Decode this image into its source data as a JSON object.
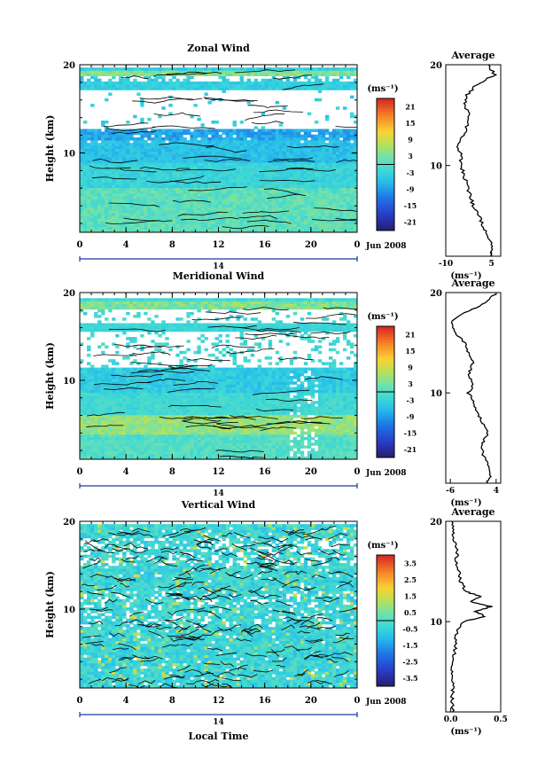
{
  "chart_data": [
    {
      "type": "heatmap",
      "title": "Zonal Wind",
      "ylabel": "Height (km)",
      "x_ticks": [
        "0",
        "4",
        "8",
        "12",
        "16",
        "20",
        "0"
      ],
      "xlim": [
        0,
        24
      ],
      "ylim": [
        1,
        20
      ],
      "y_ticks": [
        "10",
        "20"
      ],
      "date_label": "Jun 2008",
      "day_label": "14",
      "colorbar_unit": "(ms⁻¹)",
      "colorbar_ticks": [
        "21",
        "15",
        "9",
        "3",
        "-3",
        "-9",
        "-15",
        "-21"
      ],
      "colorbar_values": [
        21,
        15,
        9,
        3,
        -3,
        -9,
        -15,
        -21
      ],
      "colorbar_range": [
        -24,
        24
      ],
      "profile": {
        "title": "Average",
        "xlim": [
          -10,
          8
        ],
        "x_ticks": [
          "-10",
          "5"
        ],
        "y_ticks": [
          "10",
          "20"
        ],
        "xlabel": "(ms⁻¹)",
        "heights": [
          1,
          2,
          3,
          4,
          5,
          6,
          7,
          8,
          9,
          10,
          11,
          12,
          13,
          14,
          15,
          16,
          17,
          18,
          19,
          20
        ],
        "values": [
          5,
          5,
          4,
          2,
          1,
          -1,
          -2,
          -3,
          -4,
          -5,
          -5,
          -6,
          -4,
          -3,
          -2,
          -4,
          -3,
          0,
          6,
          4
        ]
      }
    },
    {
      "type": "heatmap",
      "title": "Meridional Wind",
      "ylabel": "Height (km)",
      "x_ticks": [
        "0",
        "4",
        "8",
        "12",
        "16",
        "20",
        "0"
      ],
      "xlim": [
        0,
        24
      ],
      "ylim": [
        1,
        20
      ],
      "y_ticks": [
        "10",
        "20"
      ],
      "date_label": "Jun 2008",
      "day_label": "14",
      "colorbar_unit": "(ms⁻¹)",
      "colorbar_ticks": [
        "21",
        "15",
        "9",
        "3",
        "-3",
        "-9",
        "-15",
        "-21"
      ],
      "colorbar_values": [
        21,
        15,
        9,
        3,
        -3,
        -9,
        -15,
        -21
      ],
      "colorbar_range": [
        -24,
        24
      ],
      "profile": {
        "title": "Average",
        "xlim": [
          -7,
          5
        ],
        "x_ticks": [
          "-6",
          "4"
        ],
        "y_ticks": [
          "10",
          "20"
        ],
        "xlabel": "(ms⁻¹)",
        "heights": [
          1,
          2,
          3,
          4,
          5,
          6,
          7,
          8,
          9,
          10,
          11,
          12,
          13,
          14,
          15,
          16,
          17,
          18,
          19,
          20
        ],
        "values": [
          2,
          3,
          2,
          1,
          1,
          2,
          1,
          0,
          -1,
          -2,
          -1,
          -2,
          -1,
          -2,
          -3,
          -5,
          -6,
          -3,
          2,
          4
        ]
      }
    },
    {
      "type": "heatmap",
      "title": "Vertical Wind",
      "ylabel": "Height (km)",
      "xlabel": "Local Time",
      "x_ticks": [
        "0",
        "4",
        "8",
        "12",
        "16",
        "20",
        "0"
      ],
      "xlim": [
        0,
        24
      ],
      "ylim": [
        1,
        20
      ],
      "y_ticks": [
        "10",
        "20"
      ],
      "date_label": "Jun 2008",
      "day_label": "14",
      "colorbar_unit": "(ms⁻¹)",
      "colorbar_ticks": [
        "3.5",
        "2.5",
        "1.5",
        "0.5",
        "-0.5",
        "-1.5",
        "-2.5",
        "-3.5"
      ],
      "colorbar_values": [
        3.5,
        2.5,
        1.5,
        0.5,
        -0.5,
        -1.5,
        -2.5,
        -3.5
      ],
      "colorbar_range": [
        -4,
        4
      ],
      "profile": {
        "title": "Average",
        "xlim": [
          -0.05,
          0.5
        ],
        "x_ticks": [
          "0.0",
          "0.5"
        ],
        "y_ticks": [
          "10",
          "20"
        ],
        "xlabel": "(ms⁻¹)",
        "heights": [
          1,
          2,
          3,
          4,
          5,
          6,
          7,
          8,
          9,
          10,
          10.5,
          11,
          11.5,
          12,
          12.5,
          13,
          14,
          15,
          16,
          17,
          18,
          19,
          20
        ],
        "values": [
          0.02,
          0.01,
          0.02,
          0.03,
          0.01,
          0.02,
          0.04,
          0.05,
          0.06,
          0.12,
          0.35,
          0.25,
          0.4,
          0.2,
          0.3,
          0.15,
          0.1,
          0.08,
          0.05,
          0.07,
          0.03,
          0.02,
          0.01
        ]
      }
    }
  ]
}
